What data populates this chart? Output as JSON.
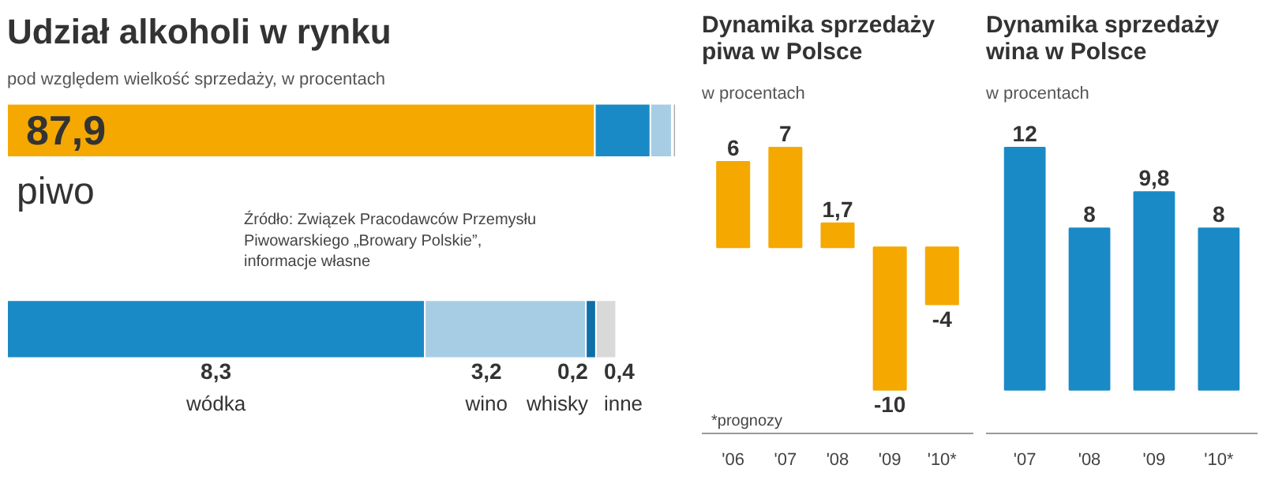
{
  "chart_data": [
    {
      "type": "bar",
      "orientation": "horizontal",
      "stacked": true,
      "title": "Udział alkoholi w rynku",
      "subtitle": "pod względem wielkość sprzedaży, w procentach",
      "categories": [
        null
      ],
      "annotations": [
        "Źródło: Związek Pracodawców Przemysłu\nPiwowarskiego „Browary Polskie”,\ninformacje własne"
      ],
      "series": [
        {
          "name": "piwo",
          "color": "#f5a800",
          "values": [
            87.9
          ],
          "value_labels": [
            "87,9"
          ]
        },
        {
          "color": "#1a8ac6",
          "values": [
            8.3
          ],
          "value_labels": [
            null
          ]
        },
        {
          "color": "#a6cde3",
          "values": [
            3.2
          ],
          "value_labels": [
            null
          ]
        },
        {
          "color": "#0f6fa8",
          "values": [
            0.2
          ],
          "value_labels": [
            null
          ]
        },
        {
          "color": "#a9a9a9",
          "values": [
            0.4
          ],
          "value_labels": [
            null
          ]
        }
      ]
    },
    {
      "type": "bar",
      "orientation": "horizontal",
      "stacked": true,
      "categories": [
        null
      ],
      "series": [
        {
          "name": "wódka",
          "color": "#1a8ac6",
          "values": [
            8.3
          ],
          "value_labels": [
            "8,3"
          ]
        },
        {
          "name": "wino",
          "color": "#a6cde3",
          "values": [
            3.2
          ],
          "value_labels": [
            "3,2"
          ]
        },
        {
          "name": "whisky",
          "color": "#0f6fa8",
          "values": [
            0.2
          ],
          "value_labels": [
            "0,2"
          ]
        },
        {
          "name": "inne",
          "color": "#d9d9d9",
          "values": [
            0.4
          ],
          "value_labels": [
            "0,4"
          ]
        }
      ]
    },
    {
      "type": "bar",
      "title": "Dynamika sprzedaży\npiwa w Polsce",
      "subtitle": "w procentach",
      "categories": [
        "'06",
        "'07",
        "'08",
        "'09",
        "'10*"
      ],
      "values": [
        6,
        7,
        1.7,
        -10,
        -4
      ],
      "color": "#f5a800",
      "value_labels": [
        "6",
        "7",
        "1,7",
        "-10",
        "-4"
      ],
      "annotations": [
        "*prognozy"
      ]
    },
    {
      "type": "bar",
      "title": "Dynamika sprzedaży\nwina w Polsce",
      "subtitle": "w procentach",
      "categories": [
        "'07",
        "'08",
        "'09",
        "'10*"
      ],
      "values": [
        12,
        8,
        9.8,
        8
      ],
      "color": "#1a8ac6",
      "value_labels": [
        "12",
        "8",
        "9,8",
        "8"
      ]
    }
  ]
}
